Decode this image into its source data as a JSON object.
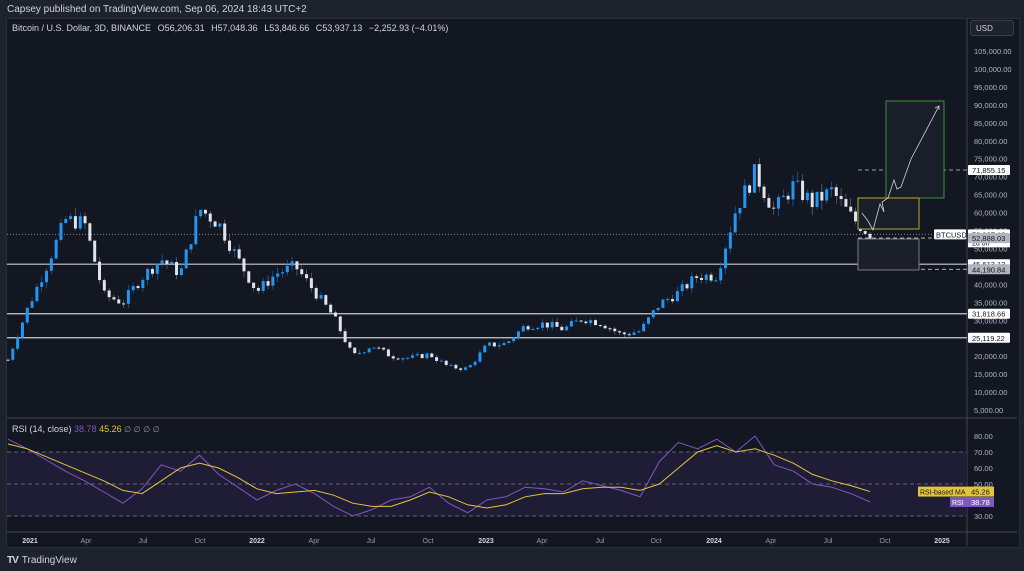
{
  "header": {
    "published": "Capsey published on TradingView.com, Sep 06, 2024 18:43 UTC+2"
  },
  "legend": {
    "symbol": "Bitcoin / U.S. Dollar, 3D, BINANCE",
    "open": "O56,206.31",
    "high": "H57,048.36",
    "low": "L53,846.66",
    "close": "C53,937.13",
    "change": "−2,252.93 (−4.01%)"
  },
  "currency_button": "USD",
  "rsi_legend": {
    "label": "RSI (14, close)",
    "rsi": "38.78",
    "ma": "45.26",
    "icons": [
      "∅",
      "∅",
      "∅",
      "∅"
    ]
  },
  "brand": "TradingView",
  "colors": {
    "background": "#131722",
    "up": "#2196f3",
    "down": "#e0e3eb",
    "rsi": "#7e57c2",
    "rsi_ma": "#e2c53a",
    "rsi_band": "#1f1d35",
    "green_box": "#3f8f3f",
    "yellow_box": "#b8a832",
    "grey_box": "#787b86"
  },
  "chart_data": [
    {
      "type": "candlestick",
      "title": "Bitcoin / U.S. Dollar, 3D, BINANCE",
      "ylabel": "USD",
      "ylim": [
        5000,
        105000
      ],
      "y_ticks": [
        "105,000.00",
        "100,000.00",
        "95,000.00",
        "90,000.00",
        "85,000.00",
        "80,000.00",
        "75,000.00",
        "70,000.00",
        "65,000.00",
        "60,000.00",
        "55,000.00",
        "50,000.00",
        "45,000.00",
        "40,000.00",
        "35,000.00",
        "30,000.00",
        "25,000.00",
        "20,000.00",
        "15,000.00",
        "10,000.00",
        "5,000.00"
      ],
      "x_ticks": [
        "2021",
        "Apr",
        "Jul",
        "Oct",
        "2022",
        "Apr",
        "Jul",
        "Oct",
        "2023",
        "Apr",
        "Jul",
        "Oct",
        "2024",
        "Apr",
        "Jul",
        "Oct",
        "2025"
      ],
      "x": [
        "2020-12",
        "2021-01",
        "2021-02",
        "2021-03",
        "2021-04",
        "2021-05",
        "2021-06",
        "2021-07",
        "2021-08",
        "2021-09",
        "2021-10",
        "2021-11",
        "2021-12",
        "2022-01",
        "2022-02",
        "2022-03",
        "2022-04",
        "2022-05",
        "2022-06",
        "2022-07",
        "2022-08",
        "2022-09",
        "2022-10",
        "2022-11",
        "2022-12",
        "2023-01",
        "2023-02",
        "2023-03",
        "2023-04",
        "2023-05",
        "2023-06",
        "2023-07",
        "2023-08",
        "2023-09",
        "2023-10",
        "2023-11",
        "2023-12",
        "2024-01",
        "2024-02",
        "2024-03",
        "2024-04",
        "2024-05",
        "2024-06",
        "2024-07",
        "2024-08",
        "2024-09"
      ],
      "close_approx": [
        19000,
        33000,
        45000,
        58000,
        57000,
        37000,
        35000,
        42000,
        47000,
        43000,
        61000,
        57000,
        47000,
        38000,
        43000,
        45000,
        38000,
        31000,
        20000,
        23000,
        20000,
        19500,
        20500,
        17000,
        16500,
        23000,
        23500,
        28500,
        29000,
        27500,
        30500,
        29200,
        26000,
        27000,
        34500,
        37700,
        42300,
        42500,
        61000,
        71000,
        60500,
        67500,
        62700,
        66000,
        58900,
        53937
      ],
      "horizontal_levels": [
        {
          "label": "71,855.15",
          "style": "dashed"
        },
        {
          "label": "53,937.13",
          "style": "dotted",
          "tag": "BTCUSD",
          "sub": "2d 8h"
        },
        {
          "label": "52,888.03",
          "style": "dashed"
        },
        {
          "label": "45,613.13",
          "style": "solid"
        },
        {
          "label": "44,190.84",
          "style": "dashed"
        },
        {
          "label": "31,818.66",
          "style": "solid"
        },
        {
          "label": "25,119.22",
          "style": "solid"
        }
      ],
      "annotations": [
        {
          "type": "box",
          "color": "green",
          "from": 64000,
          "to": 91000
        },
        {
          "type": "box",
          "color": "yellow",
          "from": 57000,
          "to": 64000
        },
        {
          "type": "box",
          "color": "grey",
          "from": 44190,
          "to": 52888
        },
        {
          "type": "path-arrow",
          "description": "projected move down to ~54k, up to ~64k, retest, then up to ~90k"
        }
      ]
    },
    {
      "type": "line",
      "title": "RSI (14, close)",
      "ylim": [
        20,
        90
      ],
      "y_ticks": [
        "80.00",
        "70.00",
        "60.00",
        "50.00",
        "30.00"
      ],
      "bands": {
        "upper": 70,
        "middle": 50,
        "lower": 30
      },
      "series": [
        {
          "name": "RSI",
          "last": 38.78,
          "values": [
            78,
            72,
            65,
            58,
            52,
            45,
            38,
            47,
            62,
            58,
            68,
            56,
            48,
            40,
            46,
            50,
            44,
            36,
            30,
            34,
            40,
            42,
            48,
            38,
            32,
            40,
            42,
            48,
            47,
            45,
            52,
            49,
            46,
            42,
            64,
            76,
            72,
            78,
            70,
            80,
            62,
            58,
            50,
            48,
            44,
            38.78
          ]
        },
        {
          "name": "RSI-based MA",
          "last": 45.26,
          "values": [
            75,
            72,
            67,
            62,
            57,
            52,
            46,
            44,
            52,
            60,
            63,
            60,
            54,
            47,
            44,
            45,
            46,
            43,
            38,
            36,
            36,
            40,
            45,
            42,
            37,
            35,
            37,
            42,
            44,
            44,
            47,
            48,
            48,
            46,
            50,
            60,
            70,
            74,
            70,
            72,
            68,
            63,
            56,
            52,
            49,
            45.26
          ]
        }
      ],
      "labels": [
        {
          "text": "RSI-based MA",
          "value": "45.26"
        },
        {
          "text": "RSI",
          "value": "38.78"
        }
      ]
    }
  ]
}
